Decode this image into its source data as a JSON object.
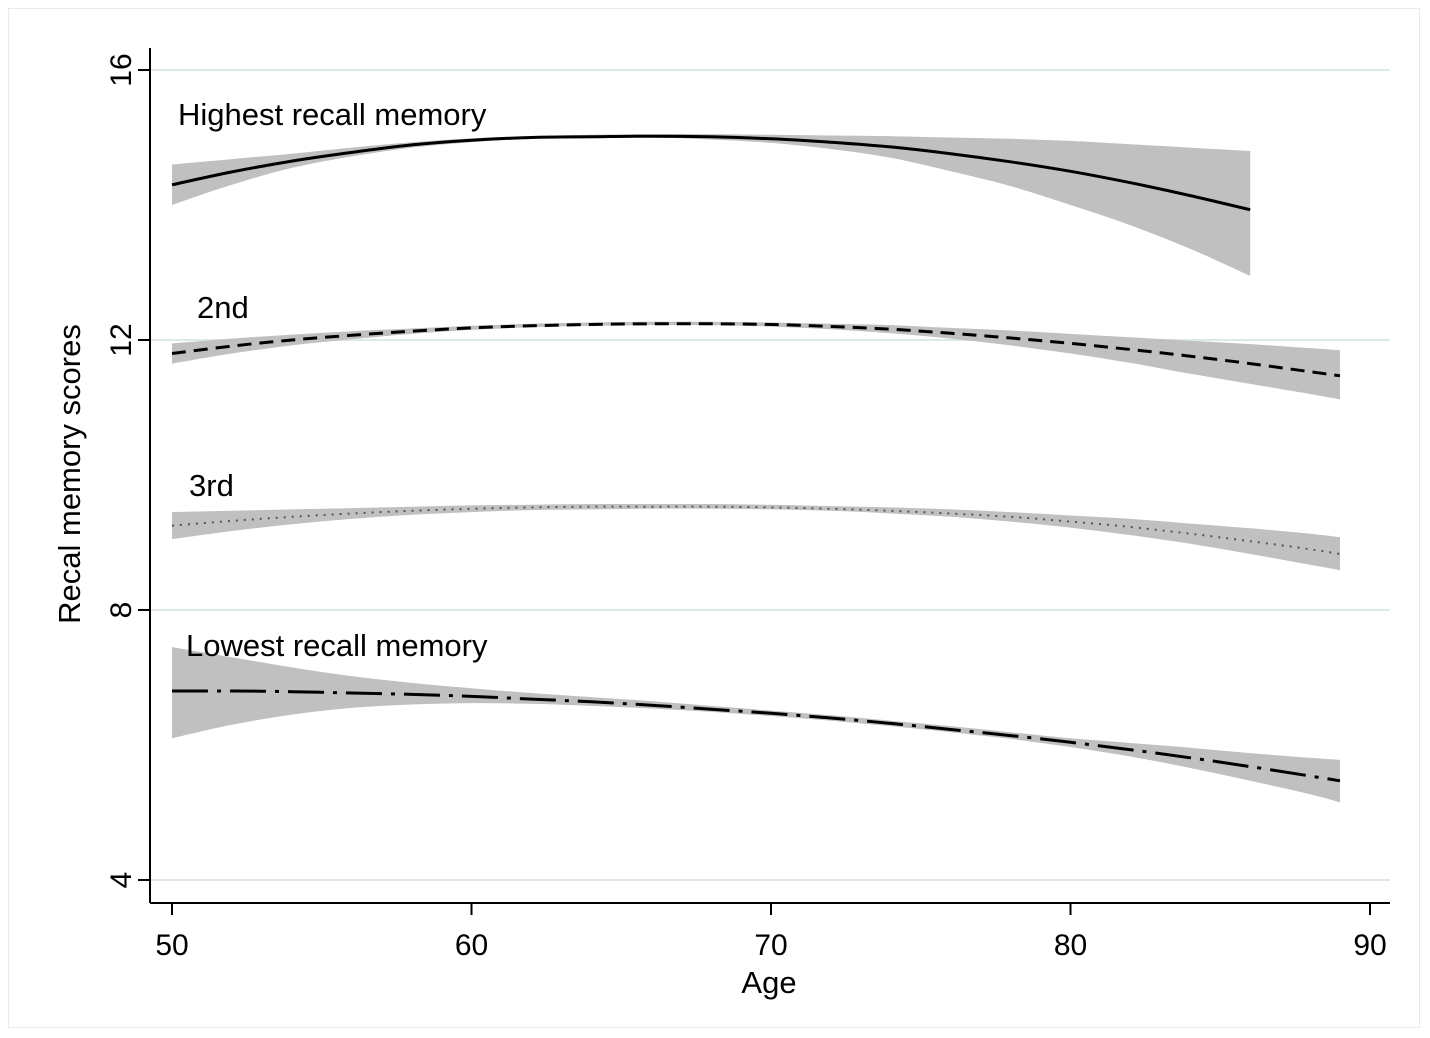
{
  "chart_data": {
    "type": "line",
    "title": "",
    "xlabel": "Age",
    "ylabel": "Recal memory scores",
    "xlim": [
      50,
      90
    ],
    "ylim": [
      4,
      16
    ],
    "xticks": [
      50,
      60,
      70,
      80,
      90
    ],
    "yticks": [
      4,
      8,
      12,
      16
    ],
    "grid": "horizontal",
    "legend": "none",
    "colors": {
      "line": "#000000",
      "band": "#c0c0c0",
      "grid": "#dde9e9"
    },
    "series": [
      {
        "name": "Highest recall memory",
        "dash": "solid",
        "x": [
          50,
          52,
          54,
          56,
          58,
          60,
          62,
          64,
          66,
          68,
          70,
          72,
          74,
          76,
          78,
          80,
          82,
          84,
          86
        ],
        "values": [
          14.3,
          14.49,
          14.65,
          14.78,
          14.89,
          14.96,
          15.0,
          15.01,
          15.02,
          15.01,
          14.98,
          14.93,
          14.86,
          14.76,
          14.64,
          14.5,
          14.33,
          14.14,
          13.93
        ],
        "lower": [
          14.0,
          14.3,
          14.55,
          14.72,
          14.85,
          14.93,
          14.98,
          14.99,
          15.0,
          14.97,
          14.92,
          14.83,
          14.7,
          14.5,
          14.28,
          14.0,
          13.7,
          13.35,
          12.95
        ],
        "upper": [
          14.6,
          14.68,
          14.76,
          14.85,
          14.93,
          14.99,
          15.02,
          15.04,
          15.05,
          15.05,
          15.04,
          15.03,
          15.02,
          15.0,
          14.98,
          14.95,
          14.9,
          14.85,
          14.8
        ]
      },
      {
        "name": "2nd",
        "dash": "dash",
        "x": [
          50,
          52,
          54,
          56,
          58,
          60,
          62,
          64,
          66,
          68,
          70,
          72,
          74,
          76,
          78,
          80,
          82,
          84,
          86,
          88,
          89
        ],
        "values": [
          11.8,
          11.91,
          12.0,
          12.07,
          12.13,
          12.18,
          12.21,
          12.23,
          12.24,
          12.24,
          12.23,
          12.2,
          12.16,
          12.1,
          12.03,
          11.95,
          11.86,
          11.76,
          11.65,
          11.53,
          11.47
        ],
        "lower": [
          11.65,
          11.8,
          11.92,
          12.01,
          12.09,
          12.15,
          12.19,
          12.21,
          12.22,
          12.22,
          12.2,
          12.16,
          12.1,
          12.02,
          11.92,
          11.8,
          11.66,
          11.5,
          11.35,
          11.2,
          11.12
        ],
        "upper": [
          11.95,
          12.02,
          12.08,
          12.13,
          12.17,
          12.21,
          12.24,
          12.26,
          12.27,
          12.27,
          12.26,
          12.24,
          12.22,
          12.18,
          12.14,
          12.09,
          12.04,
          11.99,
          11.94,
          11.88,
          11.85
        ]
      },
      {
        "name": "3rd",
        "dash": "dot",
        "x": [
          50,
          52,
          54,
          56,
          58,
          60,
          62,
          64,
          66,
          68,
          70,
          72,
          74,
          76,
          78,
          80,
          82,
          84,
          86,
          88,
          89
        ],
        "values": [
          9.25,
          9.32,
          9.38,
          9.43,
          9.47,
          9.5,
          9.52,
          9.53,
          9.53,
          9.53,
          9.52,
          9.5,
          9.47,
          9.43,
          9.38,
          9.31,
          9.23,
          9.13,
          9.02,
          8.9,
          8.83
        ],
        "lower": [
          9.05,
          9.17,
          9.27,
          9.35,
          9.41,
          9.45,
          9.48,
          9.49,
          9.5,
          9.5,
          9.49,
          9.47,
          9.43,
          9.38,
          9.31,
          9.22,
          9.11,
          8.98,
          8.83,
          8.67,
          8.59
        ],
        "upper": [
          9.45,
          9.47,
          9.49,
          9.51,
          9.53,
          9.55,
          9.56,
          9.57,
          9.57,
          9.57,
          9.56,
          9.54,
          9.52,
          9.49,
          9.45,
          9.4,
          9.35,
          9.28,
          9.21,
          9.13,
          9.08
        ]
      },
      {
        "name": "Lowest recall memory",
        "dash": "dashdot",
        "x": [
          50,
          52,
          54,
          56,
          58,
          60,
          62,
          64,
          66,
          68,
          70,
          72,
          74,
          76,
          78,
          80,
          82,
          84,
          86,
          88,
          89
        ],
        "values": [
          6.8,
          6.8,
          6.79,
          6.77,
          6.75,
          6.72,
          6.68,
          6.64,
          6.59,
          6.53,
          6.47,
          6.4,
          6.32,
          6.23,
          6.14,
          6.04,
          5.93,
          5.81,
          5.68,
          5.54,
          5.47
        ],
        "lower": [
          6.1,
          6.3,
          6.45,
          6.55,
          6.6,
          6.62,
          6.61,
          6.58,
          6.54,
          6.49,
          6.43,
          6.36,
          6.28,
          6.19,
          6.09,
          5.97,
          5.83,
          5.66,
          5.47,
          5.27,
          5.15
        ],
        "upper": [
          7.45,
          7.3,
          7.15,
          7.02,
          6.92,
          6.84,
          6.77,
          6.71,
          6.65,
          6.58,
          6.51,
          6.44,
          6.36,
          6.28,
          6.19,
          6.1,
          6.03,
          5.96,
          5.88,
          5.81,
          5.78
        ]
      }
    ]
  }
}
